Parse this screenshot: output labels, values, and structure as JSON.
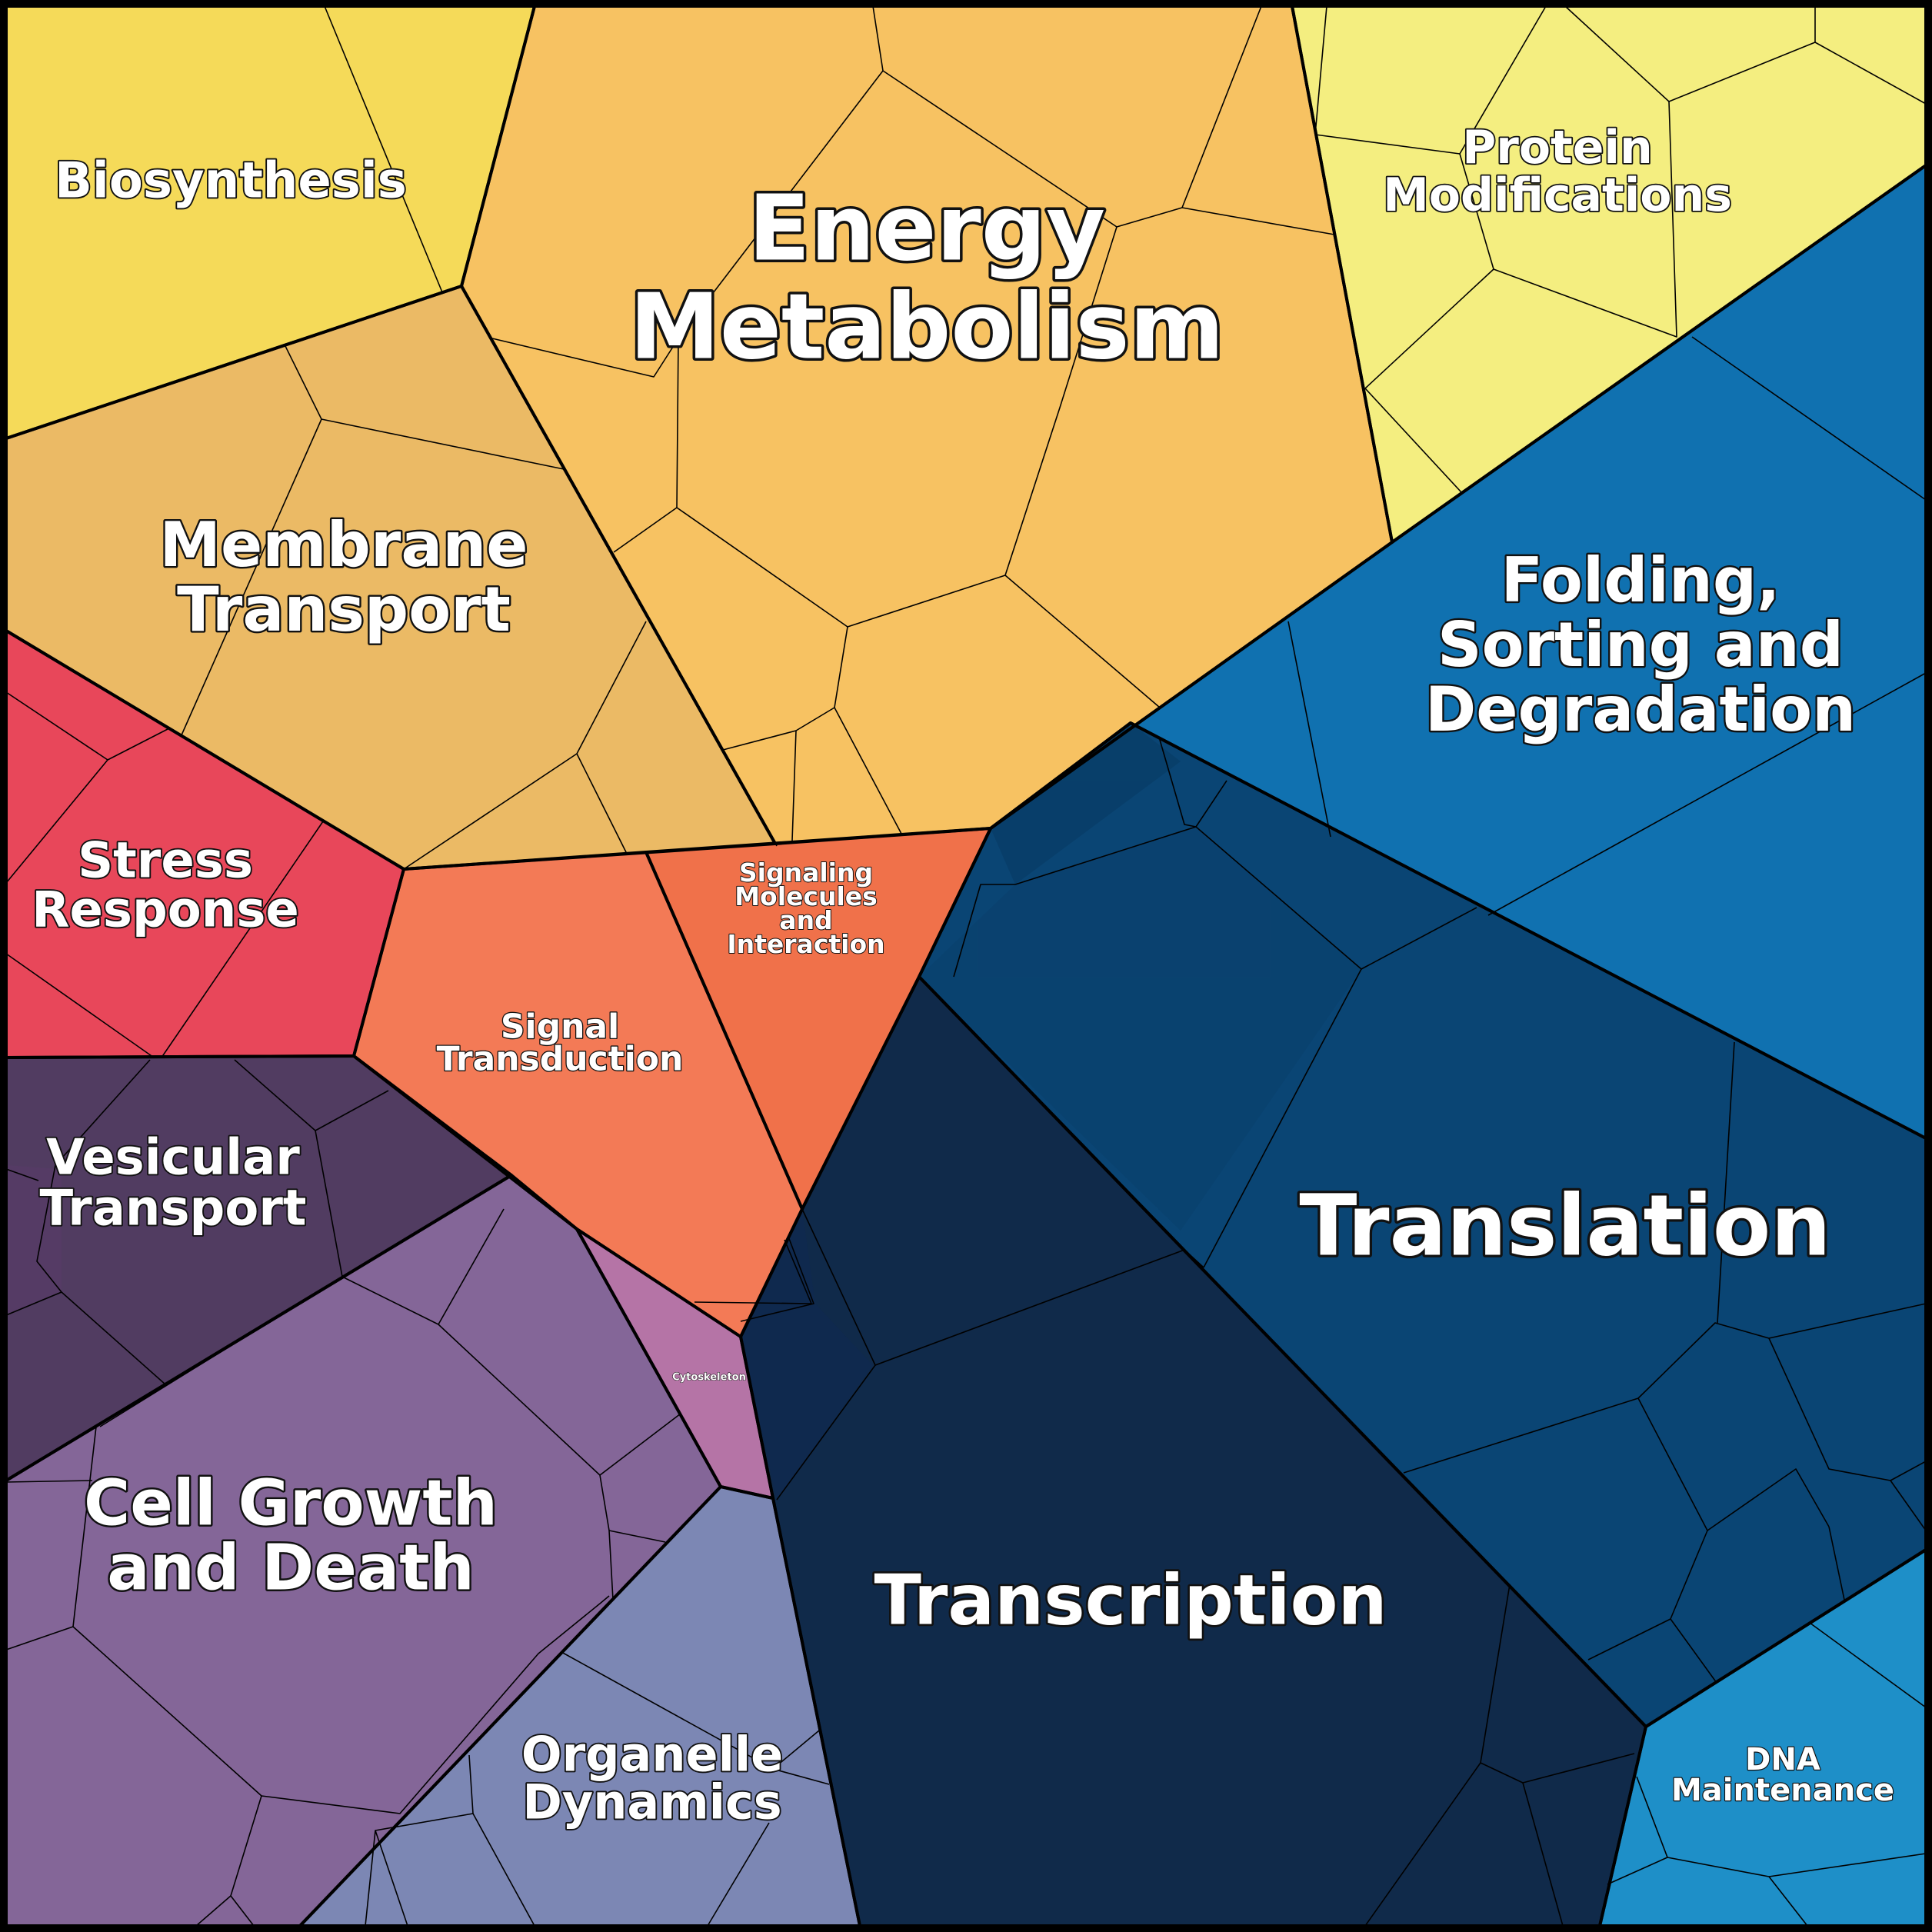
{
  "diagram": {
    "type": "voronoi-treemap",
    "regions": [
      {
        "id": "biosynthesis",
        "lines": [
          "Biosynthesis"
        ],
        "color": "#F5DA59"
      },
      {
        "id": "energy-metabolism",
        "lines": [
          "Energy",
          "Metabolism"
        ],
        "color": "#F7C262"
      },
      {
        "id": "protein-modifications",
        "lines": [
          "Protein",
          "Modifications"
        ],
        "color": "#F4EE80"
      },
      {
        "id": "membrane-transport",
        "lines": [
          "Membrane",
          "Transport"
        ],
        "color": "#EBBA65"
      },
      {
        "id": "folding-sorting-degradation",
        "lines": [
          "Folding,",
          "Sorting and",
          "Degradation"
        ],
        "color": "#1071B0"
      },
      {
        "id": "stress-response",
        "lines": [
          "Stress",
          "Response"
        ],
        "color": "#E8475A"
      },
      {
        "id": "signal-transduction",
        "lines": [
          "Signal",
          "Transduction"
        ],
        "color": "#F37A56"
      },
      {
        "id": "signaling-molecules",
        "lines": [
          "Signaling",
          "Molecules",
          "and",
          "Interaction"
        ],
        "color": "#F0714A"
      },
      {
        "id": "vesicular-transport",
        "lines": [
          "Vesicular",
          "Transport"
        ],
        "color": "#513C61"
      },
      {
        "id": "translation",
        "lines": [
          "Translation"
        ],
        "color": "#0A4574"
      },
      {
        "id": "cell-growth-death",
        "lines": [
          "Cell Growth",
          "and Death"
        ],
        "color": "#846698"
      },
      {
        "id": "cytoskeleton",
        "lines": [
          "Cytoskeleton"
        ],
        "color": "#B574A6"
      },
      {
        "id": "transcription",
        "lines": [
          "Transcription"
        ],
        "color": "#102A4A"
      },
      {
        "id": "organelle-dynamics",
        "lines": [
          "Organelle",
          "Dynamics"
        ],
        "color": "#7C87B4"
      },
      {
        "id": "dna-maintenance",
        "lines": [
          "DNA",
          "Maintenance"
        ],
        "color": "#1E8FC8"
      }
    ]
  }
}
